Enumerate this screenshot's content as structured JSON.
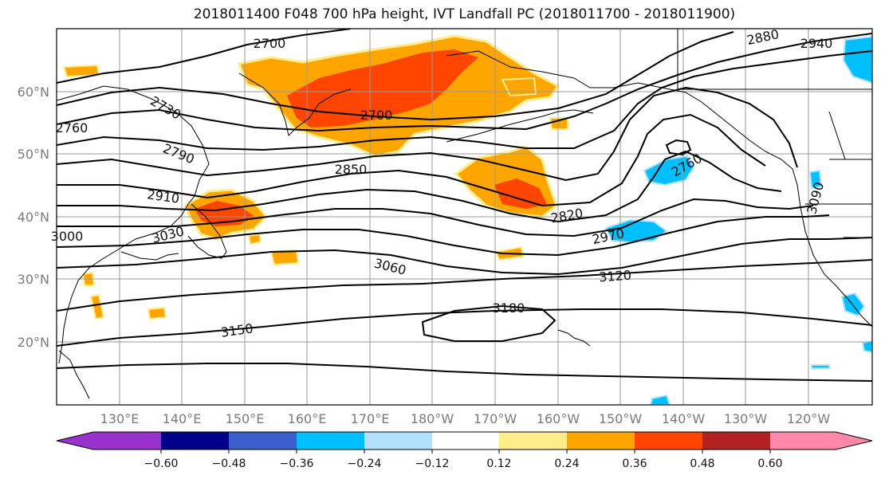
{
  "title": "2018011400 F048 700 hPa height, IVT Landfall PC (2018011700 - 2018011900)",
  "lat_labels": [
    "60°N",
    "50°N",
    "40°N",
    "30°N",
    "20°N"
  ],
  "lon_labels": [
    "130°E",
    "140°E",
    "150°E",
    "160°E",
    "170°E",
    "180°W",
    "170°W",
    "160°W",
    "150°W",
    "140°W",
    "130°W",
    "120°W"
  ],
  "contour_labels": [
    "2700",
    "2730",
    "2760",
    "2790",
    "2910",
    "3030",
    "3000",
    "2850",
    "2700",
    "2820",
    "2970",
    "3060",
    "3120",
    "3180",
    "3150",
    "2760",
    "2880",
    "2940",
    "3090"
  ],
  "colorbar": {
    "ticks": [
      "−0.60",
      "−0.48",
      "−0.36",
      "−0.24",
      "−0.12",
      "0.12",
      "0.24",
      "0.36",
      "0.48",
      "0.60"
    ],
    "colors": [
      "#9932CC",
      "#00008B",
      "#3A5FCD",
      "#00BFFF",
      "#B0E2FF",
      "#FFFFFF",
      "#FFEC8B",
      "#FFA500",
      "#FF4500",
      "#B22222",
      "#FF88AA"
    ]
  },
  "fill_colors": {
    "orange": "#FFA500",
    "red_orange": "#FF4500",
    "light_yellow": "#FFEC8B",
    "sky_blue": "#00BFFF"
  }
}
